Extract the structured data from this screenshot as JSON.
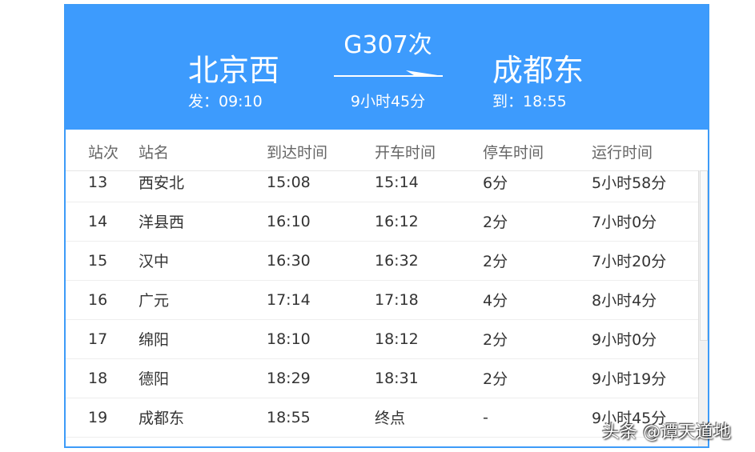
{
  "header": {
    "from": "北京西",
    "to": "成都东",
    "train": "G307次",
    "depart": "发：09:10",
    "arrive": "到：18:55",
    "duration": "9小时45分",
    "color": "#3d9bfd"
  },
  "columns": [
    "站次",
    "站名",
    "到达时间",
    "开车时间",
    "停车时间",
    "运行时间"
  ],
  "rows": [
    [
      "13",
      "西安北",
      "15:08",
      "15:14",
      "6分",
      "5小时58分"
    ],
    [
      "14",
      "洋县西",
      "16:10",
      "16:12",
      "2分",
      "7小时0分"
    ],
    [
      "15",
      "汉中",
      "16:30",
      "16:32",
      "2分",
      "7小时20分"
    ],
    [
      "16",
      "广元",
      "17:14",
      "17:18",
      "4分",
      "8小时4分"
    ],
    [
      "17",
      "绵阳",
      "18:10",
      "18:12",
      "2分",
      "9小时0分"
    ],
    [
      "18",
      "德阳",
      "18:29",
      "18:31",
      "2分",
      "9小时19分"
    ],
    [
      "19",
      "成都东",
      "18:55",
      "终点",
      "-",
      "9小时45分"
    ]
  ],
  "watermark": "头条 @谭天道地"
}
